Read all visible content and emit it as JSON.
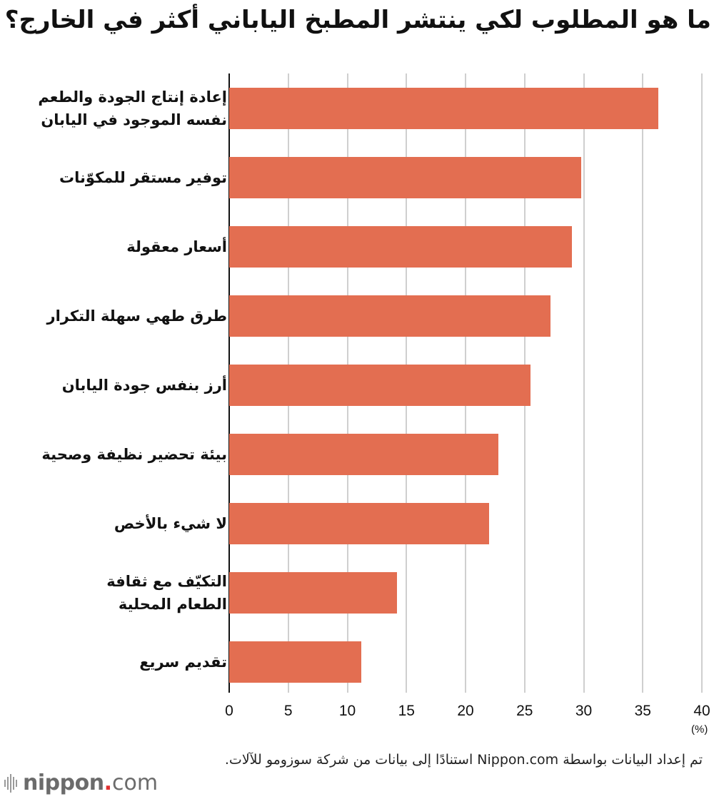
{
  "title": "ما هو المطلوب لكي ينتشر المطبخ الياباني أكثر في الخارج؟",
  "colors": {
    "bar": "#e36e51",
    "grid": "#cfcfcf",
    "axis": "#111111",
    "logo_dot": "#e03030"
  },
  "source_note": "تم إعداد البيانات بواسطة Nippon.com استنادًا إلى بيانات من شركة سوزومو للآلات.",
  "logo": {
    "brand": "nippon",
    "dot": ".",
    "tld": "com"
  },
  "chart_data": {
    "type": "bar",
    "orientation": "horizontal",
    "title": "ما هو المطلوب لكي ينتشر المطبخ الياباني أكثر في الخارج؟",
    "categories": [
      "إعادة إنتاج الجودة والطعم نفسه الموجود في اليابان",
      "توفير مستقر للمكوّنات",
      "أسعار معقولة",
      "طرق طهي سهلة التكرار",
      "أرز بنفس جودة اليابان",
      "بيئة تحضير نظيفة وصحية",
      "لا شيء بالأخص",
      "التكيّف مع ثقافة الطعام المحلية",
      "تقديم سريع"
    ],
    "label_lines": [
      [
        "إعادة إنتاج الجودة والطعم",
        "نفسه الموجود في اليابان"
      ],
      [
        "توفير مستقر للمكوّنات"
      ],
      [
        "أسعار معقولة"
      ],
      [
        "طرق طهي سهلة التكرار"
      ],
      [
        "أرز بنفس جودة اليابان"
      ],
      [
        "بيئة تحضير نظيفة وصحية"
      ],
      [
        "لا شيء بالأخص"
      ],
      [
        "التكيّف مع ثقافة",
        "الطعام المحلية"
      ],
      [
        "تقديم سريع"
      ]
    ],
    "values": [
      36.3,
      29.8,
      29.0,
      27.2,
      25.5,
      22.8,
      22.0,
      14.2,
      11.2
    ],
    "xlabel": "(%)",
    "ylabel": "",
    "xlim": [
      0,
      40
    ],
    "xticks": [
      "0",
      "5",
      "10",
      "15",
      "20",
      "25",
      "30",
      "35",
      "40"
    ],
    "grid": true,
    "legend": null
  }
}
